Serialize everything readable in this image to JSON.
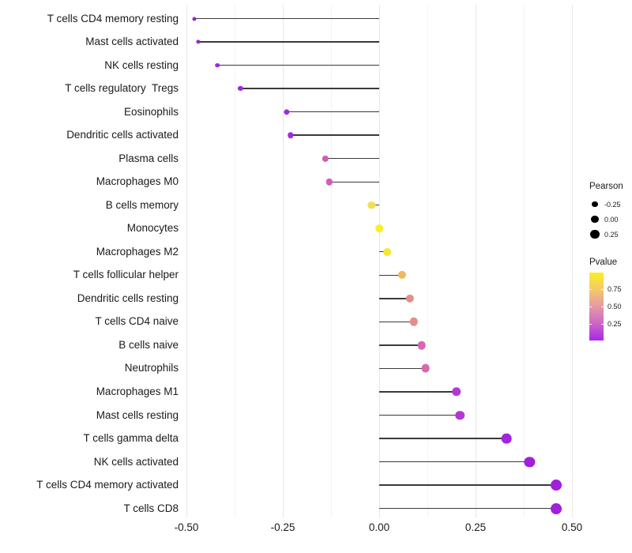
{
  "chart_data": {
    "type": "lollipop",
    "title": "",
    "xlabel": "",
    "ylabel": "",
    "x_axis": {
      "ticks": [
        -0.5,
        -0.25,
        0,
        0.25,
        0.5
      ],
      "tick_labels": [
        "-0.50",
        "-0.25",
        "0.00",
        "0.25",
        "0.50"
      ],
      "minor_ticks": [
        -0.375,
        -0.125,
        0.125,
        0.375
      ],
      "range": [
        -0.52,
        0.55
      ],
      "grid": true
    },
    "points": [
      {
        "label": "T cells CD4 memory resting",
        "pearson": -0.48,
        "pvalue": 0.001,
        "color": "#9128D2"
      },
      {
        "label": "Mast cells activated",
        "pearson": -0.47,
        "pvalue": 0.001,
        "color": "#9128D2"
      },
      {
        "label": "NK cells resting",
        "pearson": -0.42,
        "pvalue": 0.005,
        "color": "#9C2AD8"
      },
      {
        "label": "T cells regulatory  Tregs",
        "pearson": -0.36,
        "pvalue": 0.01,
        "color": "#9C2AD8"
      },
      {
        "label": "Eosinophils",
        "pearson": -0.24,
        "pvalue": 0.03,
        "color": "#A22CDB"
      },
      {
        "label": "Dendritic cells activated",
        "pearson": -0.23,
        "pvalue": 0.03,
        "color": "#A22CDB"
      },
      {
        "label": "Plasma cells",
        "pearson": -0.14,
        "pvalue": 0.31,
        "color": "#D45CB7"
      },
      {
        "label": "Macrophages M0",
        "pearson": -0.13,
        "pvalue": 0.3,
        "color": "#D45CB7"
      },
      {
        "label": "B cells memory",
        "pearson": -0.02,
        "pvalue": 0.85,
        "color": "#F2DE50"
      },
      {
        "label": "Monocytes",
        "pearson": 0.0,
        "pvalue": 0.98,
        "color": "#FAEE2A"
      },
      {
        "label": "Macrophages M2",
        "pearson": 0.02,
        "pvalue": 0.92,
        "color": "#F8E72F"
      },
      {
        "label": "T cells follicular helper",
        "pearson": 0.06,
        "pvalue": 0.7,
        "color": "#EFB960"
      },
      {
        "label": "Dendritic cells resting",
        "pearson": 0.08,
        "pvalue": 0.55,
        "color": "#E28F87"
      },
      {
        "label": "T cells CD4 naive",
        "pearson": 0.09,
        "pvalue": 0.55,
        "color": "#E28F87"
      },
      {
        "label": "B cells naive",
        "pearson": 0.11,
        "pvalue": 0.36,
        "color": "#D768AF"
      },
      {
        "label": "Neutrophils",
        "pearson": 0.12,
        "pvalue": 0.35,
        "color": "#D767B2"
      },
      {
        "label": "Macrophages M1",
        "pearson": 0.2,
        "pvalue": 0.13,
        "color": "#B437D8"
      },
      {
        "label": "Mast cells resting",
        "pearson": 0.21,
        "pvalue": 0.13,
        "color": "#B136D8"
      },
      {
        "label": "T cells gamma delta",
        "pearson": 0.33,
        "pvalue": 0.02,
        "color": "#A424DC"
      },
      {
        "label": "NK cells activated",
        "pearson": 0.39,
        "pvalue": 0.01,
        "color": "#A21FDB"
      },
      {
        "label": "T cells CD4 memory activated",
        "pearson": 0.46,
        "pvalue": 0.005,
        "color": "#A21FDB"
      },
      {
        "label": "T cells CD8",
        "pearson": 0.46,
        "pvalue": 0.005,
        "color": "#A21FDB"
      }
    ],
    "legend": {
      "position": "right",
      "pearson": {
        "title": "Pearson",
        "items": [
          "-0.25",
          "0.00",
          "0.25"
        ],
        "dot_color": "#000000"
      },
      "pvalue": {
        "title": "Pvalue",
        "tick_labels": [
          "0.75",
          "0.50",
          "0.25"
        ],
        "gradient_top_to_bottom": [
          "#F9EF23",
          "#F4C96B",
          "#E699A6",
          "#CD66C6",
          "#A826EC"
        ],
        "bar_value_range_top_to_bottom": [
          0.98,
          0.02
        ]
      }
    },
    "stem_color": "#3A3A3A",
    "gridline_major_color": "#E8E8E8",
    "gridline_minor_color": "#F4F4F4",
    "text_color": "#1A1A1A"
  }
}
